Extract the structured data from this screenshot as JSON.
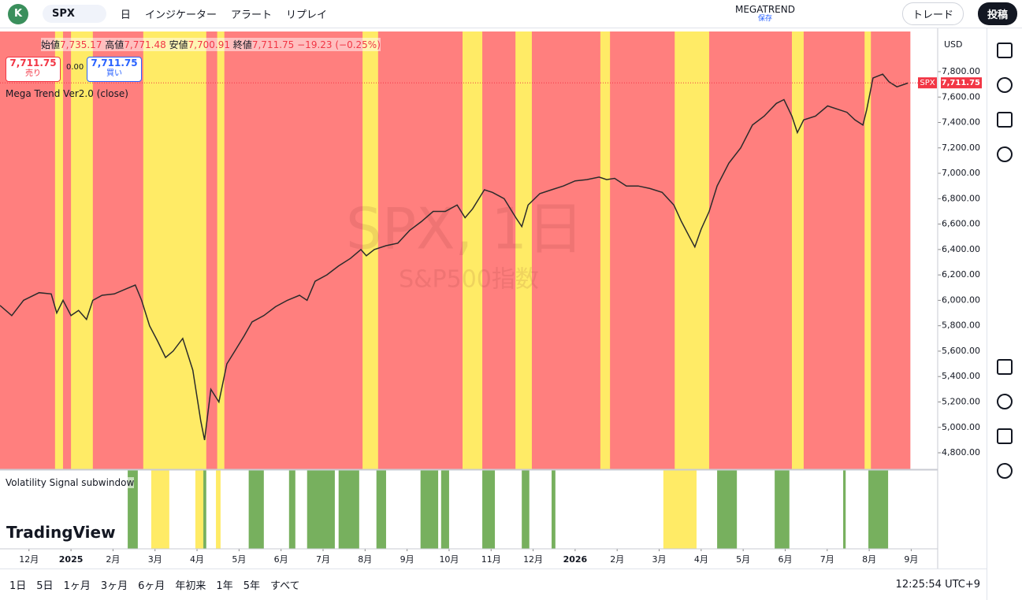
{
  "toolbar": {
    "avatar": "K",
    "symbol": "SPX",
    "interval": "日",
    "indicators": "インジケーター",
    "alert": "アラート",
    "replay": "リプレイ",
    "layout_name": "MEGATREND",
    "save_status": "保存",
    "trade": "トレード",
    "publish": "投稿"
  },
  "legend": {
    "open_label": "始値",
    "open": "7,735.17",
    "high_label": "高値",
    "high": "7,771.48",
    "low_label": "安値",
    "low": "7,700.91",
    "close_label": "終値",
    "close": "7,711.75",
    "change": "−19.23 (−0.25%)",
    "sell_price": "7,711.75",
    "sell_label": "売り",
    "spread": "0.00",
    "buy_price": "7,711.75",
    "buy_label": "買い",
    "indicator": "Mega Trend Ver2.0 (close)",
    "subwindow": "Volatility Signal subwindow"
  },
  "watermark": {
    "symbol": "SPX, 1日",
    "description": "S&P500指数"
  },
  "logo": "TradingView",
  "currency": "USD",
  "price_tag": {
    "symbol": "SPX",
    "price": "7,711.75"
  },
  "bottom_bar": {
    "ranges": [
      "1日",
      "5日",
      "1ヶ月",
      "3ヶ月",
      "6ヶ月",
      "年初来",
      "1年",
      "5年",
      "すべて"
    ],
    "clock": "12:25:54 UTC+9"
  },
  "chart_data": {
    "type": "line",
    "color": "#2b2b2b",
    "x": [
      -0.69,
      -0.41,
      -0.13,
      0.24,
      0.53,
      0.66,
      0.81,
      1.0,
      1.18,
      1.37,
      1.52,
      1.74,
      2.03,
      2.31,
      2.53,
      2.68,
      2.87,
      3.06,
      3.25,
      3.43,
      3.66,
      3.9,
      4.09,
      4.18,
      4.33,
      4.52,
      4.71,
      4.9,
      5.12,
      5.31,
      5.59,
      5.87,
      6.15,
      6.44,
      6.62,
      6.81,
      7.09,
      7.37,
      7.65,
      7.9,
      8.03,
      8.22,
      8.5,
      8.78,
      9.06,
      9.34,
      9.62,
      9.91,
      10.19,
      10.38,
      10.56,
      10.84,
      11.03,
      11.31,
      11.59,
      11.73,
      11.88,
      12.16,
      12.44,
      12.72,
      13.0,
      13.28,
      13.57,
      13.75,
      13.94,
      14.22,
      14.5,
      14.78,
      15.07,
      15.35,
      15.53,
      15.72,
      15.85,
      16.0,
      16.19,
      16.38,
      16.66,
      16.94,
      17.22,
      17.5,
      17.79,
      17.97,
      18.16,
      18.29,
      18.44,
      18.72,
      19.01,
      19.29,
      19.47,
      19.66,
      19.85,
      19.94,
      20.09,
      20.32,
      20.47,
      20.66,
      20.92
    ],
    "values": [
      5960,
      5880,
      6000,
      6060,
      6050,
      5900,
      6000,
      5880,
      5920,
      5850,
      6000,
      6040,
      6050,
      6090,
      6120,
      6000,
      5800,
      5680,
      5550,
      5600,
      5700,
      5450,
      5050,
      4900,
      5300,
      5200,
      5500,
      5600,
      5720,
      5830,
      5880,
      5950,
      6000,
      6040,
      6000,
      6150,
      6200,
      6270,
      6330,
      6400,
      6350,
      6400,
      6430,
      6450,
      6550,
      6620,
      6700,
      6700,
      6750,
      6650,
      6720,
      6870,
      6850,
      6800,
      6650,
      6580,
      6750,
      6840,
      6870,
      6900,
      6940,
      6950,
      6970,
      6950,
      6960,
      6900,
      6900,
      6880,
      6850,
      6750,
      6620,
      6500,
      6420,
      6560,
      6700,
      6900,
      7080,
      7200,
      7380,
      7450,
      7550,
      7580,
      7450,
      7320,
      7420,
      7450,
      7530,
      7500,
      7480,
      7420,
      7380,
      7500,
      7750,
      7780,
      7720,
      7680,
      7710
    ],
    "xlim": [
      -0.69,
      21.63
    ],
    "xticks": [
      {
        "value": 0,
        "label": "12月"
      },
      {
        "value": 1,
        "label": "2025"
      },
      {
        "value": 2,
        "label": "2月"
      },
      {
        "value": 3,
        "label": "3月"
      },
      {
        "value": 4,
        "label": "4月"
      },
      {
        "value": 5,
        "label": "5月"
      },
      {
        "value": 6,
        "label": "6月"
      },
      {
        "value": 7,
        "label": "7月"
      },
      {
        "value": 8,
        "label": "8月"
      },
      {
        "value": 9,
        "label": "9月"
      },
      {
        "value": 10,
        "label": "10月"
      },
      {
        "value": 11,
        "label": "11月"
      },
      {
        "value": 12,
        "label": "12月"
      },
      {
        "value": 13,
        "label": "2026"
      },
      {
        "value": 14,
        "label": "2月"
      },
      {
        "value": 15,
        "label": "3月"
      },
      {
        "value": 16,
        "label": "4月"
      },
      {
        "value": 17,
        "label": "5月"
      },
      {
        "value": 18,
        "label": "6月"
      },
      {
        "value": 19,
        "label": "7月"
      },
      {
        "value": 20,
        "label": "8月"
      },
      {
        "value": 21,
        "label": "9月"
      }
    ],
    "ylim": [
      4670,
      8116
    ],
    "yticks": [
      {
        "value": 4800,
        "label": "4,800.00"
      },
      {
        "value": 5000,
        "label": "5,000.00"
      },
      {
        "value": 5200,
        "label": "5,200.00"
      },
      {
        "value": 5400,
        "label": "5,400.00"
      },
      {
        "value": 5600,
        "label": "5,600.00"
      },
      {
        "value": 5800,
        "label": "5,800.00"
      },
      {
        "value": 6000,
        "label": "6,000.00"
      },
      {
        "value": 6200,
        "label": "6,200.00"
      },
      {
        "value": 6400,
        "label": "6,400.00"
      },
      {
        "value": 6600,
        "label": "6,600.00"
      },
      {
        "value": 6800,
        "label": "6,800.00"
      },
      {
        "value": 7000,
        "label": "7,000.00"
      },
      {
        "value": 7200,
        "label": "7,200.00"
      },
      {
        "value": 7400,
        "label": "7,400.00"
      },
      {
        "value": 7600,
        "label": "7,600.00"
      },
      {
        "value": 7800,
        "label": "7,800.00"
      }
    ],
    "last_price": 7711.75,
    "trend_range": [
      -0.69,
      20.98
    ],
    "trend_color": "#ff7f7e",
    "yellow_periods": [
      [
        0.62,
        0.81
      ],
      [
        1.0,
        1.52
      ],
      [
        2.72,
        4.22
      ],
      [
        4.48,
        4.65
      ],
      [
        7.94,
        8.31
      ],
      [
        10.32,
        10.79
      ],
      [
        11.58,
        11.97
      ],
      [
        13.6,
        13.83
      ],
      [
        15.37,
        16.19
      ],
      [
        18.16,
        18.44
      ],
      [
        19.89,
        20.04
      ]
    ],
    "yellow_color": "#ffeb66",
    "signal_green": [
      [
        2.35,
        2.59
      ],
      [
        4.15,
        4.22
      ],
      [
        5.23,
        5.59
      ],
      [
        6.19,
        6.34
      ],
      [
        6.62,
        7.28
      ],
      [
        7.37,
        7.86
      ],
      [
        8.27,
        8.5
      ],
      [
        9.32,
        9.74
      ],
      [
        9.81,
        10.0
      ],
      [
        10.79,
        11.09
      ],
      [
        11.73,
        11.91
      ],
      [
        12.44,
        12.53
      ],
      [
        16.38,
        16.85
      ],
      [
        17.75,
        18.1
      ],
      [
        19.38,
        19.44
      ],
      [
        19.98,
        20.45
      ]
    ],
    "signal_green_color": "#77b05e",
    "signal_yellow": [
      [
        2.91,
        3.34
      ],
      [
        3.96,
        4.15
      ],
      [
        4.45,
        4.56
      ],
      [
        15.1,
        15.89
      ]
    ],
    "signal_yellow_color": "#ffeb66"
  }
}
